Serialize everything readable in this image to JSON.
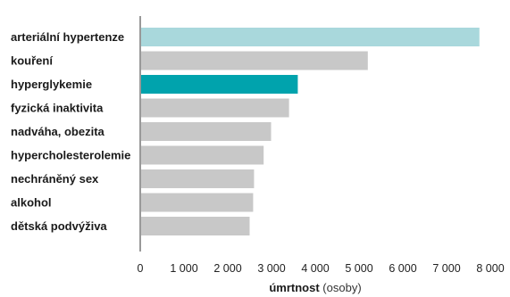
{
  "chart_data": {
    "type": "bar",
    "orientation": "horizontal",
    "categories": [
      "arteriální hypertenze",
      "kouření",
      "hyperglykemie",
      "fyzická inaktivita",
      "nadváha, obezita",
      "hypercholesterolemie",
      "nechráněný sex",
      "alkohol",
      "dětská podvýživa"
    ],
    "values": [
      7750,
      5200,
      3600,
      3400,
      2990,
      2820,
      2600,
      2580,
      2500
    ],
    "bar_colors": [
      "#a9d8dc",
      "#c8c8c8",
      "#00a3ad",
      "#c8c8c8",
      "#c8c8c8",
      "#c8c8c8",
      "#c8c8c8",
      "#c8c8c8",
      "#c8c8c8"
    ],
    "label_colors": [
      "#a9d8dc",
      "#1a1a1a",
      "#00a3ad",
      "#1a1a1a",
      "#1a1a1a",
      "#1a1a1a",
      "#1a1a1a",
      "#1a1a1a",
      "#1a1a1a"
    ],
    "xlim": [
      0,
      8000
    ],
    "x_ticks": [
      0,
      1000,
      2000,
      3000,
      4000,
      5000,
      6000,
      7000,
      8000
    ],
    "x_tick_labels": [
      "0",
      "1 000",
      "2 000",
      "3 000",
      "4 000",
      "5 000",
      "6 000",
      "7 000",
      "8 000"
    ],
    "xlabel_bold": "úmrtnost",
    "xlabel_rest": " (osoby)",
    "grid": false,
    "axis_color": "#333333"
  }
}
